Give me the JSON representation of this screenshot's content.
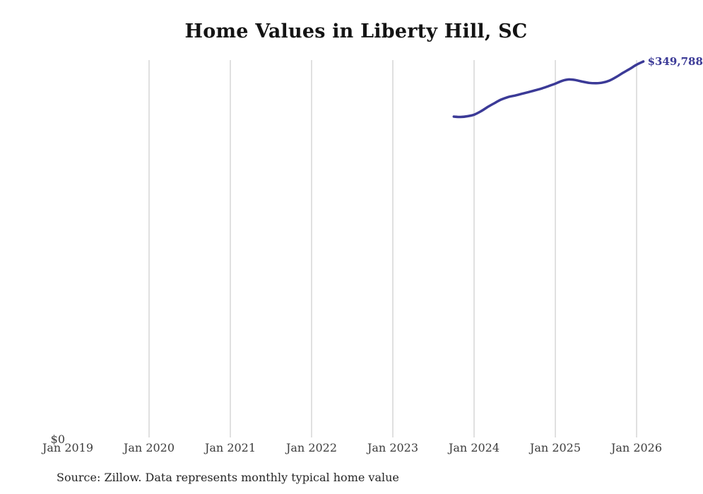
{
  "page": {
    "title": "Home Values in Liberty Hill, SC",
    "source_note": "Source: Zillow. Data represents monthly typical home value"
  },
  "latest_value_label": "$349,788",
  "colors": {
    "line": "#3b3a97",
    "end_label": "#3b3a97",
    "grid": "#cccccc",
    "axis_text": "#3d3d3d",
    "title_text": "#141414",
    "source_text": "#262626",
    "background": "#ffffff"
  },
  "axes": {
    "y_zero_label": "$0",
    "x_ticks": [
      {
        "label": "Jan 2019",
        "month": "2019-01",
        "gridline": false
      },
      {
        "label": "Jan 2020",
        "month": "2020-01",
        "gridline": true
      },
      {
        "label": "Jan 2021",
        "month": "2021-01",
        "gridline": true
      },
      {
        "label": "Jan 2022",
        "month": "2022-01",
        "gridline": true
      },
      {
        "label": "Jan 2023",
        "month": "2023-01",
        "gridline": true
      },
      {
        "label": "Jan 2024",
        "month": "2024-01",
        "gridline": true
      },
      {
        "label": "Jan 2025",
        "month": "2025-01",
        "gridline": true
      },
      {
        "label": "Jan 2026",
        "month": "2026-01",
        "gridline": true
      }
    ]
  },
  "chart_data": {
    "type": "line",
    "title": "Home Values in Liberty Hill, SC",
    "xlabel": "",
    "ylabel": "",
    "x_unit": "month",
    "x_axis_ticks": [
      "Jan 2019",
      "Jan 2020",
      "Jan 2021",
      "Jan 2022",
      "Jan 2023",
      "Jan 2024",
      "Jan 2025",
      "Jan 2026"
    ],
    "y_axis": {
      "min": 0,
      "zero_label": "$0"
    },
    "grid": "vertical-only",
    "legend": "none",
    "annotation": {
      "text": "$349,788",
      "attached_to": "last-point"
    },
    "series": [
      {
        "name": "Monthly typical home value",
        "points": [
          {
            "date": "2023-10",
            "value": 298600
          },
          {
            "date": "2023-11",
            "value": 298300
          },
          {
            "date": "2023-12",
            "value": 298900
          },
          {
            "date": "2024-01",
            "value": 300400
          },
          {
            "date": "2024-02",
            "value": 303500
          },
          {
            "date": "2024-03",
            "value": 307500
          },
          {
            "date": "2024-04",
            "value": 311100
          },
          {
            "date": "2024-05",
            "value": 314400
          },
          {
            "date": "2024-06",
            "value": 316700
          },
          {
            "date": "2024-07",
            "value": 318100
          },
          {
            "date": "2024-08",
            "value": 319700
          },
          {
            "date": "2024-09",
            "value": 321300
          },
          {
            "date": "2024-10",
            "value": 323000
          },
          {
            "date": "2024-11",
            "value": 324700
          },
          {
            "date": "2024-12",
            "value": 326900
          },
          {
            "date": "2025-01",
            "value": 329200
          },
          {
            "date": "2025-02",
            "value": 331800
          },
          {
            "date": "2025-03",
            "value": 333100
          },
          {
            "date": "2025-04",
            "value": 332500
          },
          {
            "date": "2025-05",
            "value": 331100
          },
          {
            "date": "2025-06",
            "value": 329900
          },
          {
            "date": "2025-07",
            "value": 329600
          },
          {
            "date": "2025-08",
            "value": 330200
          },
          {
            "date": "2025-09",
            "value": 332100
          },
          {
            "date": "2025-10",
            "value": 335400
          },
          {
            "date": "2025-11",
            "value": 339300
          },
          {
            "date": "2025-12",
            "value": 342900
          },
          {
            "date": "2026-01",
            "value": 346800
          },
          {
            "date": "2026-02",
            "value": 349788
          }
        ]
      }
    ]
  }
}
